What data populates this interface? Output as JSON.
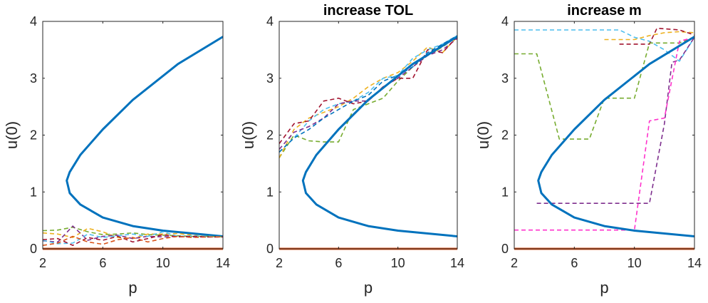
{
  "colors": {
    "bifurcation": "#0072BD",
    "trivial": "#D95319",
    "dash": [
      "#EDB120",
      "#7E2F8E",
      "#77AC30",
      "#4DBEEE",
      "#A2142F",
      "#FF33CC"
    ]
  },
  "chart_data": [
    {
      "type": "line",
      "title": "",
      "xlabel": "p",
      "ylabel": "u(0)",
      "xlim": [
        2,
        14
      ],
      "ylim": [
        0,
        4
      ],
      "xticks": [
        2,
        6,
        10,
        14
      ],
      "yticks": [
        0,
        1,
        2,
        3,
        4
      ],
      "grid": false,
      "series": [
        {
          "kind": "bifurcation",
          "color": "#0072BD",
          "points": [
            [
              14,
              3.73
            ],
            [
              11,
              3.25
            ],
            [
              8,
              2.62
            ],
            [
              6,
              2.1
            ],
            [
              4.5,
              1.65
            ],
            [
              3.8,
              1.35
            ],
            [
              3.6,
              1.2
            ],
            [
              3.8,
              0.98
            ],
            [
              4.5,
              0.78
            ],
            [
              6,
              0.55
            ],
            [
              8,
              0.4
            ],
            [
              10,
              0.32
            ],
            [
              14,
              0.22
            ]
          ]
        },
        {
          "kind": "trivial",
          "color": "#D95319",
          "points": [
            [
              2,
              0
            ],
            [
              14,
              0
            ]
          ]
        },
        {
          "kind": "dashed",
          "color": "#77AC30",
          "points": [
            [
              2,
              0.32
            ],
            [
              3,
              0.33
            ],
            [
              4,
              0.38
            ],
            [
              5,
              0.3
            ],
            [
              6,
              0.25
            ],
            [
              7,
              0.26
            ],
            [
              8,
              0.28
            ],
            [
              9,
              0.25
            ],
            [
              10,
              0.24
            ],
            [
              11,
              0.23
            ],
            [
              12,
              0.22
            ],
            [
              13,
              0.22
            ],
            [
              14,
              0.21
            ]
          ]
        },
        {
          "kind": "dashed",
          "color": "#EDB120",
          "points": [
            [
              2,
              0.28
            ],
            [
              3,
              0.26
            ],
            [
              4,
              0.2
            ],
            [
              5,
              0.36
            ],
            [
              6,
              0.3
            ],
            [
              7,
              0.2
            ],
            [
              8,
              0.18
            ],
            [
              9,
              0.26
            ],
            [
              10,
              0.26
            ],
            [
              11,
              0.27
            ],
            [
              12,
              0.24
            ],
            [
              13,
              0.22
            ],
            [
              14,
              0.21
            ]
          ]
        },
        {
          "kind": "dashed",
          "color": "#7E2F8E",
          "points": [
            [
              2,
              0.14
            ],
            [
              3,
              0.12
            ],
            [
              4,
              0.4
            ],
            [
              5,
              0.15
            ],
            [
              6,
              0.22
            ],
            [
              7,
              0.24
            ],
            [
              8,
              0.18
            ],
            [
              9,
              0.22
            ],
            [
              10,
              0.21
            ],
            [
              11,
              0.22
            ],
            [
              12,
              0.21
            ],
            [
              13,
              0.21
            ],
            [
              14,
              0.21
            ]
          ]
        },
        {
          "kind": "dashed",
          "color": "#4DBEEE",
          "points": [
            [
              2,
              0.15
            ],
            [
              3,
              0.09
            ],
            [
              4,
              0.1
            ],
            [
              5,
              0.26
            ],
            [
              6,
              0.2
            ],
            [
              7,
              0.23
            ],
            [
              8,
              0.26
            ],
            [
              9,
              0.22
            ],
            [
              10,
              0.3
            ],
            [
              11,
              0.22
            ],
            [
              12,
              0.23
            ],
            [
              13,
              0.22
            ],
            [
              14,
              0.21
            ]
          ]
        },
        {
          "kind": "dashed",
          "color": "#A2142F",
          "points": [
            [
              2,
              0.16
            ],
            [
              3,
              0.18
            ],
            [
              4,
              0.06
            ],
            [
              5,
              0.2
            ],
            [
              6,
              0.15
            ],
            [
              7,
              0.22
            ],
            [
              8,
              0.12
            ],
            [
              9,
              0.18
            ],
            [
              10,
              0.25
            ],
            [
              11,
              0.21
            ],
            [
              12,
              0.22
            ],
            [
              13,
              0.21
            ],
            [
              14,
              0.21
            ]
          ]
        },
        {
          "kind": "dashed",
          "color": "#D95319",
          "points": [
            [
              2,
              0.06
            ],
            [
              3,
              0.1
            ],
            [
              4,
              0.22
            ],
            [
              5,
              0.12
            ],
            [
              6,
              0.08
            ],
            [
              7,
              0.16
            ],
            [
              8,
              0.2
            ],
            [
              9,
              0.12
            ],
            [
              10,
              0.18
            ],
            [
              11,
              0.22
            ],
            [
              12,
              0.2
            ],
            [
              13,
              0.21
            ],
            [
              14,
              0.21
            ]
          ]
        }
      ]
    },
    {
      "type": "line",
      "title": "increase TOL",
      "xlabel": "p",
      "ylabel": "u(0)",
      "xlim": [
        2,
        14
      ],
      "ylim": [
        0,
        4
      ],
      "xticks": [
        2,
        6,
        10,
        14
      ],
      "yticks": [
        0,
        1,
        2,
        3,
        4
      ],
      "grid": false,
      "series": [
        {
          "kind": "trivial",
          "color": "#D95319",
          "points": [
            [
              2,
              0
            ],
            [
              14,
              0
            ]
          ]
        },
        {
          "kind": "dashed",
          "color": "#77AC30",
          "points": [
            [
              2,
              1.6
            ],
            [
              3,
              2.0
            ],
            [
              4,
              1.9
            ],
            [
              5,
              1.88
            ],
            [
              6,
              1.88
            ],
            [
              7,
              2.45
            ],
            [
              8,
              2.55
            ],
            [
              9,
              2.65
            ],
            [
              10,
              2.95
            ],
            [
              11,
              3.2
            ],
            [
              12,
              3.4
            ],
            [
              13,
              3.55
            ],
            [
              14,
              3.73
            ]
          ]
        },
        {
          "kind": "dashed",
          "color": "#EDB120",
          "points": [
            [
              2,
              1.6
            ],
            [
              3,
              2.1
            ],
            [
              4,
              2.3
            ],
            [
              5,
              2.4
            ],
            [
              6,
              2.5
            ],
            [
              7,
              2.65
            ],
            [
              8,
              2.85
            ],
            [
              9,
              3.0
            ],
            [
              10,
              3.1
            ],
            [
              11,
              3.3
            ],
            [
              12,
              3.55
            ],
            [
              13,
              3.45
            ],
            [
              14,
              3.73
            ]
          ]
        },
        {
          "kind": "dashed",
          "color": "#4DBEEE",
          "points": [
            [
              2,
              1.7
            ],
            [
              3,
              1.95
            ],
            [
              4,
              2.25
            ],
            [
              5,
              2.45
            ],
            [
              6,
              2.55
            ],
            [
              7,
              2.6
            ],
            [
              8,
              2.75
            ],
            [
              9,
              3.0
            ],
            [
              10,
              3.05
            ],
            [
              11,
              3.35
            ],
            [
              12,
              3.5
            ],
            [
              13,
              3.6
            ],
            [
              14,
              3.75
            ]
          ]
        },
        {
          "kind": "dashed",
          "color": "#7E2F8E",
          "points": [
            [
              2,
              1.75
            ],
            [
              3,
              2.05
            ],
            [
              4,
              2.15
            ],
            [
              5,
              2.3
            ],
            [
              6,
              2.55
            ],
            [
              7,
              2.6
            ],
            [
              8,
              2.6
            ],
            [
              9,
              2.85
            ],
            [
              10,
              3.0
            ],
            [
              11,
              3.2
            ],
            [
              12,
              3.4
            ],
            [
              13,
              3.5
            ],
            [
              14,
              3.7
            ]
          ]
        },
        {
          "kind": "dashed",
          "color": "#A2142F",
          "points": [
            [
              2,
              1.85
            ],
            [
              3,
              2.2
            ],
            [
              4,
              2.25
            ],
            [
              5,
              2.6
            ],
            [
              6,
              2.65
            ],
            [
              7,
              2.55
            ],
            [
              8,
              2.6
            ],
            [
              9,
              2.85
            ],
            [
              10,
              3.0
            ],
            [
              11,
              3.0
            ],
            [
              12,
              3.5
            ],
            [
              13,
              3.45
            ],
            [
              14,
              3.73
            ]
          ]
        },
        {
          "kind": "dashed",
          "color": "#0072BD",
          "points": [
            [
              2,
              1.7
            ],
            [
              3,
              1.95
            ],
            [
              4,
              2.1
            ],
            [
              5,
              2.3
            ],
            [
              6,
              2.45
            ],
            [
              7,
              2.6
            ],
            [
              8,
              2.7
            ],
            [
              9,
              2.95
            ],
            [
              10,
              3.05
            ],
            [
              11,
              3.2
            ],
            [
              12,
              3.45
            ],
            [
              13,
              3.6
            ],
            [
              14,
              3.75
            ]
          ]
        },
        {
          "kind": "bifurcation",
          "color": "#0072BD",
          "points": [
            [
              14,
              3.73
            ],
            [
              11,
              3.25
            ],
            [
              8,
              2.62
            ],
            [
              6,
              2.1
            ],
            [
              4.5,
              1.65
            ],
            [
              3.8,
              1.35
            ],
            [
              3.6,
              1.2
            ],
            [
              3.8,
              0.98
            ],
            [
              4.5,
              0.78
            ],
            [
              6,
              0.55
            ],
            [
              8,
              0.4
            ],
            [
              10,
              0.32
            ],
            [
              14,
              0.22
            ]
          ]
        }
      ]
    },
    {
      "type": "line",
      "title": "increase m",
      "xlabel": "p",
      "ylabel": "u(0)",
      "xlim": [
        2,
        14
      ],
      "ylim": [
        0,
        4
      ],
      "xticks": [
        2,
        6,
        10,
        14
      ],
      "yticks": [
        0,
        1,
        2,
        3,
        4
      ],
      "grid": false,
      "series": [
        {
          "kind": "trivial",
          "color": "#D95319",
          "points": [
            [
              2,
              0
            ],
            [
              14,
              0
            ]
          ]
        },
        {
          "kind": "dashed",
          "color": "#4DBEEE",
          "points": [
            [
              2,
              3.85
            ],
            [
              9,
              3.85
            ],
            [
              10,
              3.72
            ],
            [
              11,
              3.65
            ],
            [
              12,
              3.5
            ],
            [
              13,
              3.3
            ],
            [
              14,
              3.72
            ]
          ]
        },
        {
          "kind": "dashed",
          "color": "#EDB120",
          "points": [
            [
              8,
              3.68
            ],
            [
              10,
              3.68
            ],
            [
              11,
              3.75
            ],
            [
              12,
              3.8
            ],
            [
              13,
              3.82
            ],
            [
              14,
              3.8
            ]
          ]
        },
        {
          "kind": "dashed",
          "color": "#A2142F",
          "points": [
            [
              9,
              3.6
            ],
            [
              11,
              3.6
            ],
            [
              11.5,
              3.88
            ],
            [
              13,
              3.85
            ],
            [
              14,
              3.76
            ]
          ]
        },
        {
          "kind": "dashed",
          "color": "#77AC30",
          "points": [
            [
              2,
              3.43
            ],
            [
              3.5,
              3.43
            ],
            [
              5,
              1.93
            ],
            [
              7,
              1.93
            ],
            [
              8,
              2.65
            ],
            [
              9,
              2.65
            ],
            [
              10,
              2.65
            ],
            [
              11,
              3.62
            ],
            [
              12,
              3.62
            ],
            [
              13,
              3.62
            ],
            [
              14,
              3.72
            ]
          ]
        },
        {
          "kind": "dashed",
          "color": "#7E2F8E",
          "points": [
            [
              3.5,
              0.8
            ],
            [
              11,
              0.8
            ],
            [
              12,
              2.2
            ],
            [
              12.5,
              3.28
            ],
            [
              13,
              3.32
            ],
            [
              14,
              3.72
            ]
          ]
        },
        {
          "kind": "dashed",
          "color": "#FF33CC",
          "points": [
            [
              2,
              0.33
            ],
            [
              10,
              0.33
            ],
            [
              11,
              2.25
            ],
            [
              12,
              2.3
            ],
            [
              13,
              3.65
            ],
            [
              14,
              3.72
            ]
          ]
        },
        {
          "kind": "bifurcation",
          "color": "#0072BD",
          "points": [
            [
              14,
              3.73
            ],
            [
              11,
              3.25
            ],
            [
              8,
              2.62
            ],
            [
              6,
              2.1
            ],
            [
              4.5,
              1.65
            ],
            [
              3.8,
              1.35
            ],
            [
              3.6,
              1.2
            ],
            [
              3.8,
              0.98
            ],
            [
              4.5,
              0.78
            ],
            [
              6,
              0.55
            ],
            [
              8,
              0.4
            ],
            [
              10,
              0.32
            ],
            [
              14,
              0.22
            ]
          ]
        }
      ]
    }
  ]
}
